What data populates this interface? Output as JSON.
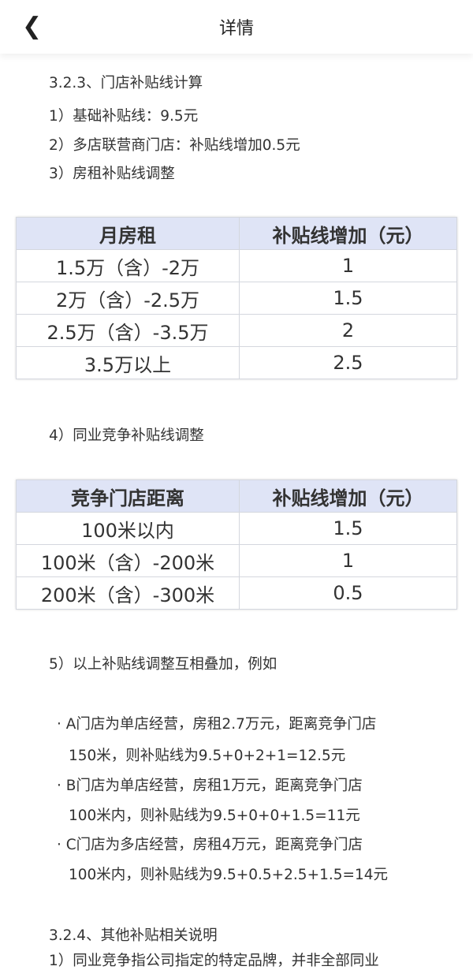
{
  "header": {
    "title": "详情",
    "back_icon": "chevron-left"
  },
  "section1": {
    "heading": "3.2.3、门店补贴线计算",
    "item1": "1）基础补贴线：9.5元",
    "item2": "2）多店联营商门店：补贴线增加0.5元",
    "item3": "3）房租补贴线调整"
  },
  "rent_table": {
    "headers": [
      "月房租",
      "补贴线增加（元）"
    ],
    "rows": [
      [
        "1.5万（含）-2万",
        "1"
      ],
      [
        "2万（含）-2.5万",
        "1.5"
      ],
      [
        "2.5万（含）-3.5万",
        "2"
      ],
      [
        "3.5万以上",
        "2.5"
      ]
    ]
  },
  "item4": "4）同业竞争补贴线调整",
  "distance_table": {
    "headers": [
      "竞争门店距离",
      "补贴线增加（元）"
    ],
    "rows": [
      [
        "100米以内",
        "1.5"
      ],
      [
        "100米（含）-200米",
        "1"
      ],
      [
        "200米（含）-300米",
        "0.5"
      ]
    ]
  },
  "item5": "5）以上补贴线调整互相叠加，例如",
  "examples": [
    {
      "line1": "A门店为单店经营，房租2.7万元，距离竞争门店",
      "line2": "150米，则补贴线为9.5+0+2+1=12.5元"
    },
    {
      "line1": "B门店为单店经营，房租1万元，距离竞争门店",
      "line2": "100米内，则补贴线为9.5+0+0+1.5=11元"
    },
    {
      "line1": "C门店为多店经营，房租4万元，距离竞争门店",
      "line2": "100米内，则补贴线为9.5+0.5+2.5+1.5=14元"
    }
  ],
  "section2": {
    "heading": "3.2.4、其他补贴相关说明",
    "item1": "1）同业竞争指公司指定的特定品牌，并非全部同业"
  }
}
